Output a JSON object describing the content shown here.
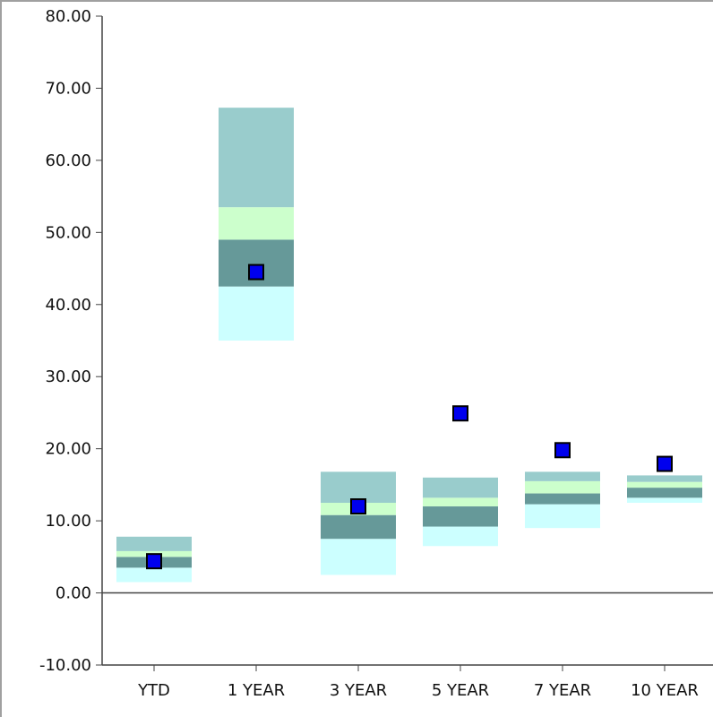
{
  "chart_data": {
    "type": "floating stacked bar with markers",
    "title": "",
    "xlabel": "",
    "ylabel": "",
    "ylim": [
      -10,
      80
    ],
    "y_ticks": [
      "80.00",
      "70.00",
      "60.00",
      "50.00",
      "40.00",
      "30.00",
      "20.00",
      "10.00",
      "0.00",
      "-10.00"
    ],
    "y_tick_values": [
      80,
      70,
      60,
      50,
      40,
      30,
      20,
      10,
      0,
      -10
    ],
    "categories": [
      "YTD",
      "1 YEAR",
      "3 YEAR",
      "5 YEAR",
      "7 YEAR",
      "10 YEAR"
    ],
    "bands": {
      "bottom": [
        1.5,
        35.0,
        2.5,
        6.5,
        9.0,
        12.5
      ],
      "b1": [
        3.5,
        42.5,
        7.5,
        9.2,
        12.3,
        13.2
      ],
      "b2": [
        5.0,
        49.0,
        10.8,
        12.0,
        13.8,
        14.6
      ],
      "b3": [
        5.8,
        53.5,
        12.5,
        13.2,
        15.5,
        15.4
      ],
      "top": [
        7.8,
        67.3,
        16.8,
        16.0,
        16.8,
        16.3
      ]
    },
    "markers": [
      4.4,
      44.5,
      12.0,
      24.9,
      19.8,
      17.9
    ],
    "grid": false,
    "legend": "none",
    "colors": {
      "top_band": "#99cccc",
      "upper_mid_band": "#ccffcc",
      "lower_mid_band": "#669999",
      "bottom_band": "#ccffff",
      "marker_fill": "#0000ee",
      "marker_stroke": "#000000",
      "axis": "#444444",
      "frame": "#a0a0a0"
    }
  }
}
